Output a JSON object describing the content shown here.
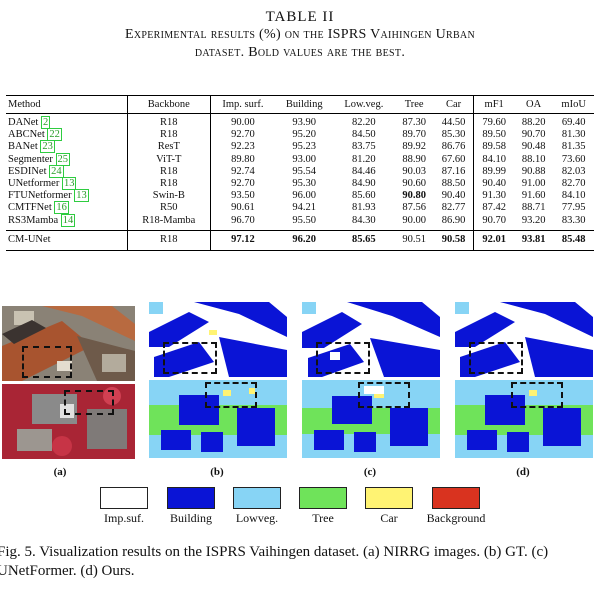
{
  "table": {
    "title": "TABLE II",
    "subtitle_line1": "Experimental results (%) on the ISPRS Vaihingen Urban",
    "subtitle_line2": "dataset. Bold values are the best.",
    "headers": [
      "Method",
      "Backbone",
      "Imp. surf.",
      "Building",
      "Low.veg.",
      "Tree",
      "Car",
      "mF1",
      "OA",
      "mIoU"
    ],
    "rows": [
      {
        "method": "DANet",
        "cite": "2",
        "cells": [
          "R18",
          "90.00",
          "93.90",
          "82.20",
          "87.30",
          "44.50",
          "79.60",
          "88.20",
          "69.40"
        ]
      },
      {
        "method": "ABCNet",
        "cite": "22",
        "cells": [
          "R18",
          "92.70",
          "95.20",
          "84.50",
          "89.70",
          "85.30",
          "89.50",
          "90.70",
          "81.30"
        ]
      },
      {
        "method": "BANet",
        "cite": "23",
        "cells": [
          "ResT",
          "92.23",
          "95.23",
          "83.75",
          "89.92",
          "86.76",
          "89.58",
          "90.48",
          "81.35"
        ]
      },
      {
        "method": "Segmenter",
        "cite": "25",
        "cells": [
          "ViT-T",
          "89.80",
          "93.00",
          "81.20",
          "88.90",
          "67.60",
          "84.10",
          "88.10",
          "73.60"
        ]
      },
      {
        "method": "ESDINet",
        "cite": "24",
        "cells": [
          "R18",
          "92.74",
          "95.54",
          "84.46",
          "90.03",
          "87.16",
          "89.99",
          "90.88",
          "82.03"
        ]
      },
      {
        "method": "UNetformer",
        "cite": "13",
        "cells": [
          "R18",
          "92.70",
          "95.30",
          "84.90",
          "90.60",
          "88.50",
          "90.40",
          "91.00",
          "82.70"
        ]
      },
      {
        "method": "FTUNetformer",
        "cite": "13",
        "cells": [
          "Swin-B",
          "93.50",
          "96.00",
          "85.60",
          "90.80",
          "90.40",
          "91.30",
          "91.60",
          "84.10"
        ],
        "bold": [
          4
        ]
      },
      {
        "method": "CMTFNet",
        "cite": "16",
        "cells": [
          "R50",
          "90.61",
          "94.21",
          "81.93",
          "87.56",
          "82.77",
          "87.42",
          "88.71",
          "77.95"
        ]
      },
      {
        "method": "RS3Mamba",
        "cite": "14",
        "cells": [
          "R18-Mamba",
          "96.70",
          "95.50",
          "84.30",
          "90.00",
          "86.90",
          "90.70",
          "93.20",
          "83.30"
        ]
      }
    ],
    "final": {
      "method": "CM-UNet",
      "cells": [
        "R18",
        "97.12",
        "96.20",
        "85.65",
        "90.51",
        "90.58",
        "92.01",
        "93.81",
        "85.48"
      ],
      "bold": [
        1,
        2,
        3,
        5,
        6,
        7,
        8
      ]
    }
  },
  "figure": {
    "panel_labels": [
      "(a)",
      "(b)",
      "(c)",
      "(d)"
    ],
    "legend": [
      {
        "name": "Imp.suf.",
        "color": "#ffffff"
      },
      {
        "name": "Building",
        "color": "#0a14d6"
      },
      {
        "name": "Lowveg.",
        "color": "#87d4f5"
      },
      {
        "name": "Tree",
        "color": "#6fe35a"
      },
      {
        "name": "Car",
        "color": "#fff373"
      },
      {
        "name": "Background",
        "color": "#d9331f"
      }
    ],
    "caption": "Fig. 5.   Visualization results on the ISPRS Vaihingen dataset. (a) NIRRG images. (b) GT. (c) UNetFormer. (d) Ours."
  }
}
